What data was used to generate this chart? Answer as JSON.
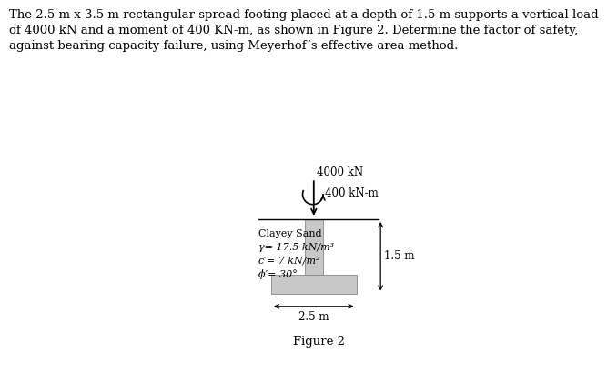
{
  "title_text": "The 2.5 m x 3.5 m rectangular spread footing placed at a depth of 1.5 m supports a vertical load\nof 4000 kN and a moment of 400 KN-m, as shown in Figure 2. Determine the factor of safety,\nagainst bearing capacity failure, using Meyerhof’s effective area method.",
  "figure_caption": "Figure 2",
  "load_label": "4000 kN",
  "moment_label": "400 kN-m",
  "depth_label": "1.5 m",
  "width_label": "2.5 m",
  "soil_line1": "Clayey Sand",
  "soil_line2": "γ= 17.5 kN/m³",
  "soil_line3": "c′= 7 kN/m²",
  "soil_line4": "ϕ′= 30°",
  "footing_color": "#c8c8c8",
  "line_color": "#000000",
  "bg_color": "#ffffff",
  "text_color": "#000000",
  "title_fontsize": 9.5,
  "label_fontsize": 8.5,
  "soil_fontsize": 8.0,
  "caption_fontsize": 9.5
}
